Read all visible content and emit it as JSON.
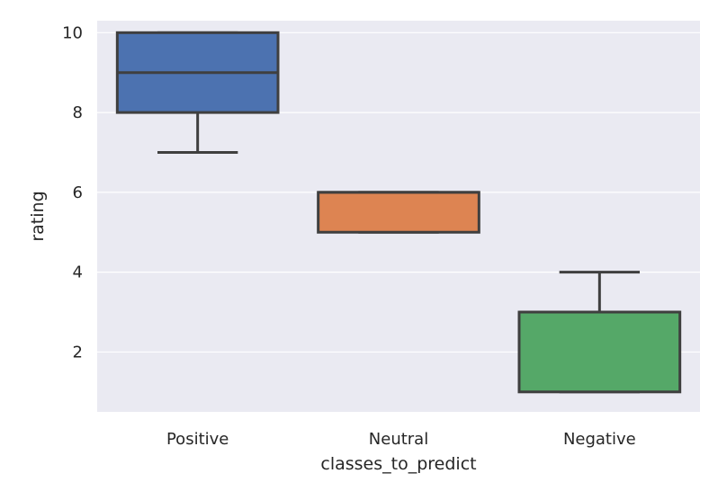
{
  "chart_data": {
    "type": "box",
    "xlabel": "classes_to_predict",
    "ylabel": "rating",
    "ylim": [
      0.5,
      10.3
    ],
    "yticks": [
      2,
      4,
      6,
      8,
      10
    ],
    "grid": true,
    "background": "#eaeaf2",
    "categories": [
      "Positive",
      "Neutral",
      "Negative"
    ],
    "boxes": [
      {
        "category": "Positive",
        "whisker_low": 7,
        "q1": 8,
        "median": 9,
        "q3": 10,
        "whisker_high": 10,
        "color": "#4c72b0"
      },
      {
        "category": "Neutral",
        "whisker_low": 5,
        "q1": 5,
        "median": 6,
        "q3": 6,
        "whisker_high": 6,
        "color": "#dd8452"
      },
      {
        "category": "Negative",
        "whisker_low": 1,
        "q1": 1,
        "median": 3,
        "q3": 3,
        "whisker_high": 4,
        "color": "#55a868"
      }
    ],
    "line_color": "#3f3f3f"
  }
}
